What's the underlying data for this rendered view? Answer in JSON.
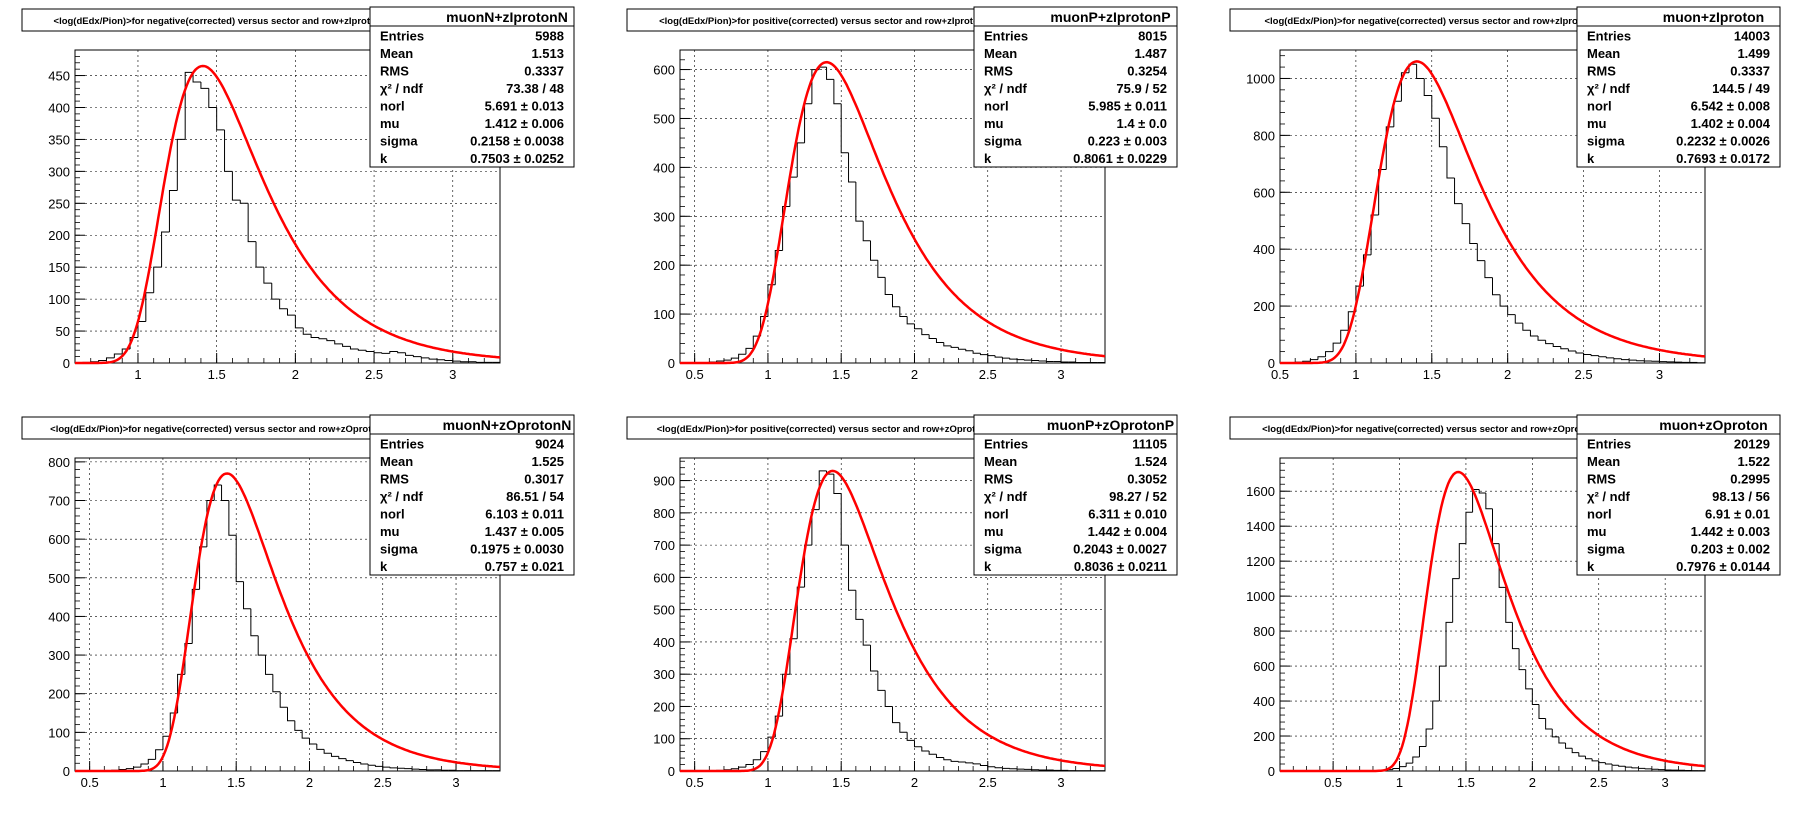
{
  "chart_data": [
    {
      "type": "bar",
      "title": "<log(dEdx/Pion)>for negative(corrected) versus sector and row+zIprotonN",
      "stats": {
        "name": "muonN+zIprotonN",
        "rows": [
          {
            "label": "Entries",
            "value": "5988"
          },
          {
            "label": "Mean",
            "value": "1.513"
          },
          {
            "label": "RMS",
            "value": "0.3337"
          },
          {
            "label": "χ² / ndf",
            "value": "73.38 / 48"
          },
          {
            "label": "norl",
            "value": "5.691 ± 0.013"
          },
          {
            "label": "mu",
            "value": "1.412 ± 0.006"
          },
          {
            "label": "sigma",
            "value": "0.2158 ± 0.0038"
          },
          {
            "label": "k",
            "value": "0.7503 ± 0.0252"
          }
        ]
      },
      "xlim": [
        0.6,
        3.3
      ],
      "ylim": [
        0,
        490
      ],
      "xticks": [
        1,
        1.5,
        2,
        2.5,
        3
      ],
      "yticks": [
        0,
        50,
        100,
        150,
        200,
        250,
        300,
        350,
        400,
        450
      ],
      "fit": {
        "mu": 1.412,
        "sigma": 0.2158,
        "peak": 465,
        "k": 0.7503
      },
      "bin_width": 0.05,
      "hist_start": 0.6,
      "counts": [
        0,
        1,
        2,
        4,
        8,
        14,
        22,
        40,
        65,
        110,
        150,
        205,
        270,
        350,
        455,
        440,
        430,
        400,
        365,
        300,
        255,
        250,
        190,
        150,
        125,
        100,
        85,
        75,
        55,
        45,
        40,
        38,
        35,
        30,
        26,
        22,
        20,
        18,
        16,
        15,
        18,
        16,
        12,
        10,
        8,
        6,
        5,
        4,
        3,
        2,
        2,
        1,
        1,
        1
      ]
    },
    {
      "type": "bar",
      "title": "<log(dEdx/Pion)>for positive(corrected) versus sector and row+zIprotonP",
      "stats": {
        "name": "muonP+zIprotonP",
        "rows": [
          {
            "label": "Entries",
            "value": "8015"
          },
          {
            "label": "Mean",
            "value": "1.487"
          },
          {
            "label": "RMS",
            "value": "0.3254"
          },
          {
            "label": "χ² / ndf",
            "value": "75.9 / 52"
          },
          {
            "label": "norl",
            "value": "5.985 ± 0.011"
          },
          {
            "label": "mu",
            "value": "1.4 ± 0.0"
          },
          {
            "label": "sigma",
            "value": "0.223 ± 0.003"
          },
          {
            "label": "k",
            "value": "0.8061 ± 0.0229"
          }
        ]
      },
      "xlim": [
        0.4,
        3.3
      ],
      "ylim": [
        0,
        640
      ],
      "xticks": [
        0.5,
        1,
        1.5,
        2,
        2.5,
        3
      ],
      "yticks": [
        0,
        100,
        200,
        300,
        400,
        500,
        600
      ],
      "fit": {
        "mu": 1.4,
        "sigma": 0.223,
        "peak": 615,
        "k": 0.8061
      },
      "bin_width": 0.05,
      "hist_start": 0.4,
      "counts": [
        0,
        0,
        0,
        1,
        2,
        4,
        6,
        10,
        18,
        30,
        55,
        95,
        160,
        230,
        320,
        380,
        450,
        530,
        600,
        605,
        580,
        530,
        430,
        370,
        290,
        250,
        210,
        175,
        140,
        115,
        95,
        80,
        70,
        58,
        50,
        42,
        35,
        32,
        28,
        25,
        20,
        17,
        15,
        12,
        10,
        8,
        7,
        6,
        5,
        4,
        3,
        3,
        2,
        2,
        1,
        1,
        1,
        1
      ]
    },
    {
      "type": "bar",
      "title": "<log(dEdx/Pion)>for negative(corrected) versus sector and row+zIproton",
      "stats": {
        "name": "muon+zIproton",
        "rows": [
          {
            "label": "Entries",
            "value": "14003"
          },
          {
            "label": "Mean",
            "value": "1.499"
          },
          {
            "label": "RMS",
            "value": "0.3337"
          },
          {
            "label": "χ² / ndf",
            "value": "144.5 / 49"
          },
          {
            "label": "norl",
            "value": "6.542 ± 0.008"
          },
          {
            "label": "mu",
            "value": "1.402 ± 0.004"
          },
          {
            "label": "sigma",
            "value": "0.2232 ± 0.0026"
          },
          {
            "label": "k",
            "value": "0.7693 ± 0.0172"
          }
        ]
      },
      "xlim": [
        0.5,
        3.3
      ],
      "ylim": [
        0,
        1100
      ],
      "xticks": [
        0.5,
        1,
        1.5,
        2,
        2.5,
        3
      ],
      "yticks": [
        0,
        200,
        400,
        600,
        800,
        1000
      ],
      "fit": {
        "mu": 1.402,
        "sigma": 0.2232,
        "peak": 1060,
        "k": 0.7693
      },
      "bin_width": 0.05,
      "hist_start": 0.5,
      "counts": [
        0,
        1,
        3,
        6,
        12,
        22,
        40,
        70,
        115,
        180,
        270,
        380,
        520,
        680,
        830,
        920,
        1020,
        1050,
        1000,
        940,
        860,
        760,
        650,
        560,
        490,
        420,
        360,
        300,
        240,
        200,
        170,
        140,
        115,
        95,
        80,
        68,
        58,
        50,
        42,
        35,
        30,
        26,
        22,
        18,
        15,
        12,
        10,
        8,
        7,
        6,
        5,
        4,
        3,
        2,
        2,
        1
      ]
    },
    {
      "type": "bar",
      "title": "<log(dEdx/Pion)>for negative(corrected) versus sector and row+zOprotonN",
      "stats": {
        "name": "muonN+zOprotonN",
        "rows": [
          {
            "label": "Entries",
            "value": "9024"
          },
          {
            "label": "Mean",
            "value": "1.525"
          },
          {
            "label": "RMS",
            "value": "0.3017"
          },
          {
            "label": "χ² / ndf",
            "value": "86.51 / 54"
          },
          {
            "label": "norl",
            "value": "6.103 ± 0.011"
          },
          {
            "label": "mu",
            "value": "1.437 ± 0.005"
          },
          {
            "label": "sigma",
            "value": "0.1975 ± 0.0030"
          },
          {
            "label": "k",
            "value": "0.757 ± 0.021"
          }
        ]
      },
      "xlim": [
        0.4,
        3.3
      ],
      "ylim": [
        0,
        810
      ],
      "xticks": [
        0.5,
        1,
        1.5,
        2,
        2.5,
        3
      ],
      "yticks": [
        0,
        100,
        200,
        300,
        400,
        500,
        600,
        700,
        800
      ],
      "fit": {
        "mu": 1.437,
        "sigma": 0.1975,
        "peak": 770,
        "k": 0.757
      },
      "bin_width": 0.05,
      "hist_start": 0.4,
      "counts": [
        0,
        0,
        0,
        0,
        1,
        2,
        4,
        6,
        10,
        18,
        30,
        55,
        90,
        150,
        250,
        330,
        470,
        580,
        700,
        740,
        700,
        610,
        490,
        420,
        350,
        300,
        250,
        205,
        165,
        130,
        105,
        85,
        70,
        56,
        46,
        38,
        32,
        27,
        22,
        18,
        15,
        12,
        10,
        8,
        7,
        6,
        5,
        4,
        3,
        3,
        2,
        2,
        1,
        1,
        1,
        1,
        1,
        1
      ]
    },
    {
      "type": "bar",
      "title": "<log(dEdx/Pion)>for positive(corrected) versus sector and row+zOprotonP",
      "stats": {
        "name": "muonP+zOprotonP",
        "rows": [
          {
            "label": "Entries",
            "value": "11105"
          },
          {
            "label": "Mean",
            "value": "1.524"
          },
          {
            "label": "RMS",
            "value": "0.3052"
          },
          {
            "label": "χ² / ndf",
            "value": "98.27 / 52"
          },
          {
            "label": "norl",
            "value": "6.311 ± 0.010"
          },
          {
            "label": "mu",
            "value": "1.442 ± 0.004"
          },
          {
            "label": "sigma",
            "value": "0.2043 ± 0.0027"
          },
          {
            "label": "k",
            "value": "0.8036 ± 0.0211"
          }
        ]
      },
      "xlim": [
        0.4,
        3.3
      ],
      "ylim": [
        0,
        970
      ],
      "xticks": [
        0.5,
        1,
        1.5,
        2,
        2.5,
        3
      ],
      "yticks": [
        0,
        100,
        200,
        300,
        400,
        500,
        600,
        700,
        800,
        900
      ],
      "fit": {
        "mu": 1.442,
        "sigma": 0.2043,
        "peak": 930,
        "k": 0.8036
      },
      "bin_width": 0.05,
      "hist_start": 0.4,
      "counts": [
        0,
        0,
        0,
        0,
        1,
        2,
        4,
        7,
        12,
        20,
        35,
        60,
        105,
        170,
        300,
        410,
        570,
        700,
        810,
        930,
        920,
        860,
        700,
        560,
        470,
        390,
        310,
        250,
        200,
        150,
        120,
        95,
        75,
        62,
        52,
        42,
        35,
        30,
        28,
        25,
        22,
        17,
        13,
        10,
        8,
        7,
        6,
        5,
        4,
        3,
        3,
        2,
        2,
        1,
        1,
        1,
        1,
        1
      ]
    },
    {
      "type": "bar",
      "title": "<log(dEdx/Pion)>for negative(corrected) versus sector and row+zOproton",
      "stats": {
        "name": "muon+zOproton",
        "rows": [
          {
            "label": "Entries",
            "value": "20129"
          },
          {
            "label": "Mean",
            "value": "1.522"
          },
          {
            "label": "RMS",
            "value": "0.2995"
          },
          {
            "label": "χ² / ndf",
            "value": "98.13 / 56"
          },
          {
            "label": "norl",
            "value": "6.91 ± 0.01"
          },
          {
            "label": "mu",
            "value": "1.442 ± 0.003"
          },
          {
            "label": "sigma",
            "value": "0.203 ± 0.002"
          },
          {
            "label": "k",
            "value": "0.7976 ± 0.0144"
          }
        ]
      },
      "xlim": [
        0.1,
        3.3
      ],
      "ylim": [
        0,
        1790
      ],
      "xticks": [
        0.5,
        1,
        1.5,
        2,
        2.5,
        3
      ],
      "yticks": [
        0,
        200,
        400,
        600,
        800,
        1000,
        1200,
        1400,
        1600
      ],
      "fit": {
        "mu": 1.442,
        "sigma": 0.203,
        "peak": 1710,
        "k": 0.7976
      },
      "bin_width": 0.05,
      "hist_start": 0.1,
      "counts": [
        0,
        0,
        0,
        0,
        0,
        0,
        0,
        0,
        0,
        0,
        0,
        0,
        0,
        1,
        2,
        4,
        8,
        14,
        25,
        45,
        80,
        140,
        240,
        400,
        600,
        850,
        1100,
        1300,
        1480,
        1610,
        1590,
        1500,
        1300,
        1050,
        850,
        700,
        580,
        470,
        380,
        300,
        240,
        195,
        160,
        130,
        105,
        85,
        70,
        58,
        48,
        40,
        33,
        27,
        22,
        18,
        15,
        12,
        10,
        8,
        6,
        5,
        4,
        3,
        2,
        2
      ]
    }
  ]
}
